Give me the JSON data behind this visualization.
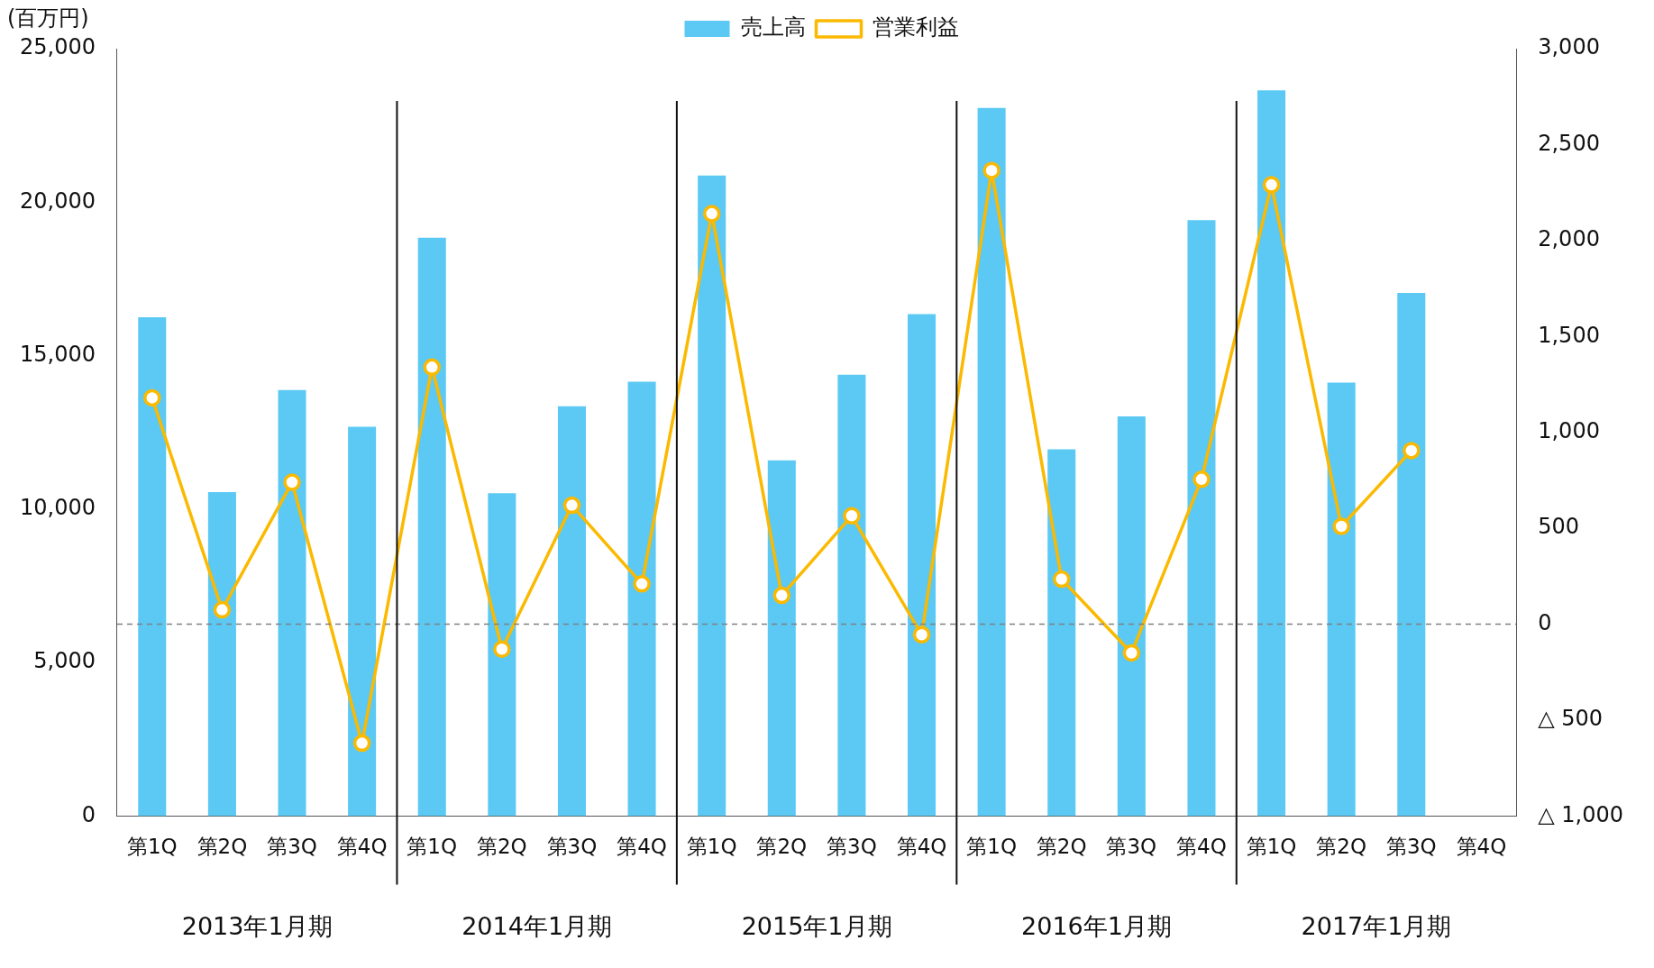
{
  "chart_data": {
    "type": "bar",
    "ylabel": "(百万円)",
    "categories": [
      "第1Q",
      "第2Q",
      "第3Q",
      "第4Q",
      "第1Q",
      "第2Q",
      "第3Q",
      "第4Q",
      "第1Q",
      "第2Q",
      "第3Q",
      "第4Q",
      "第1Q",
      "第2Q",
      "第3Q",
      "第4Q",
      "第1Q",
      "第2Q",
      "第3Q",
      "第4Q"
    ],
    "series": [
      {
        "name": "売上高",
        "color": "#5bc9f4",
        "values": [
          16250,
          10550,
          13880,
          12680,
          18840,
          10520,
          13350,
          14150,
          20870,
          11590,
          14380,
          16350,
          23070,
          11950,
          13020,
          19410,
          23640,
          14120,
          17040,
          null
        ]
      },
      {
        "name": "営業利益",
        "type": "line",
        "axis": "y2",
        "color": "#fbb900",
        "marker": "circle",
        "values": [
          1180,
          75,
          740,
          -620,
          1340,
          -130,
          620,
          210,
          2140,
          150,
          565,
          -55,
          2365,
          235,
          -150,
          755,
          2290,
          510,
          905,
          null
        ]
      }
    ],
    "ylim": [
      0,
      25000
    ],
    "yticks": [
      0,
      {
        "value": 5000,
        "label": "5,000"
      },
      {
        "value": 10000,
        "label": "10,000"
      },
      {
        "value": 15000,
        "label": "15,000"
      },
      {
        "value": 20000,
        "label": "20,000"
      },
      {
        "value": 25000,
        "label": "25,000"
      }
    ],
    "y2lim": [
      -1000,
      3000
    ],
    "y2ticks": [
      {
        "value": -1000,
        "label": "△ 1,000"
      },
      {
        "value": -500,
        "label": "△ 500"
      },
      0,
      500,
      {
        "value": 1000,
        "label": "1,000"
      },
      {
        "value": 1500,
        "label": "1,500"
      },
      {
        "value": 2000,
        "label": "2,000"
      },
      {
        "value": 2500,
        "label": "2,500"
      },
      {
        "value": 3000,
        "label": "3,000"
      }
    ],
    "ref_lines": [
      {
        "axis": "y2",
        "value": 0,
        "color": "#808080",
        "line_style": "dashed"
      }
    ],
    "annotations": [
      "2013年1月期",
      "2014年1月期",
      "2015年1月期",
      "2016年1月期",
      "2017年1月期"
    ],
    "legend": "top",
    "grid": false
  }
}
